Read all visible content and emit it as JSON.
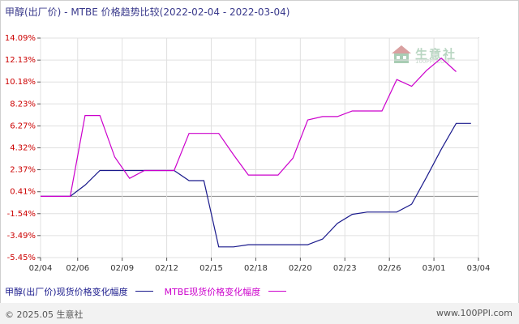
{
  "title": "甲醇(出厂价) - MTBE 价格趋势比较(2022-02-04 - 2022-03-04)",
  "footer": {
    "copyright": "© 2025.05 生意社",
    "site": "www.100PPI.com"
  },
  "watermark": {
    "name": "生意社",
    "url": "100PPI.COM"
  },
  "colors": {
    "series1": "#1a1a8c",
    "series2": "#cc00cc",
    "axis": "#555555",
    "grid": "#e0e0e0",
    "tick": "#cc0000"
  },
  "chart_data": {
    "type": "line",
    "title": "甲醇(出厂价) - MTBE 价格趋势比较(2022-02-04 - 2022-03-04)",
    "ylim": [
      -5.45,
      14.09
    ],
    "ytick_labels": [
      "14.09%",
      "12.13%",
      "10.18%",
      "8.23%",
      "6.27%",
      "4.32%",
      "2.37%",
      "0.41%",
      "-1.54%",
      "-3.49%",
      "-5.45%"
    ],
    "ytick_values": [
      14.09,
      12.13,
      10.18,
      8.23,
      6.27,
      4.32,
      2.37,
      0.41,
      -1.54,
      -3.49,
      -5.45
    ],
    "x_ticks": [
      "02/04",
      "02/06",
      "02/09",
      "02/12",
      "02/15",
      "02/18",
      "02/20",
      "02/23",
      "02/26",
      "03/01",
      "03/04"
    ],
    "x_tick_positions": [
      0,
      2.5,
      5.5,
      8.5,
      11.5,
      14.5,
      17.5,
      20.5,
      23.5,
      26.5,
      29.5
    ],
    "x_range": [
      0,
      29.5
    ],
    "grid": true,
    "legend_position": "bottom",
    "series": [
      {
        "name": "甲醇(出厂价)现货价格变化幅度",
        "points": [
          [
            0,
            0
          ],
          [
            2,
            0
          ],
          [
            3,
            1
          ],
          [
            4,
            2.3
          ],
          [
            5,
            2.3
          ],
          [
            6,
            2.3
          ],
          [
            7,
            2.3
          ],
          [
            8,
            2.3
          ],
          [
            9,
            2.3
          ],
          [
            10,
            1.4
          ],
          [
            11,
            1.4
          ],
          [
            12,
            -4.5
          ],
          [
            13,
            -4.5
          ],
          [
            14,
            -4.3
          ],
          [
            15,
            -4.3
          ],
          [
            16,
            -4.3
          ],
          [
            17,
            -4.3
          ],
          [
            18,
            -4.3
          ],
          [
            19,
            -3.8
          ],
          [
            20,
            -2.4
          ],
          [
            21,
            -1.6
          ],
          [
            22,
            -1.4
          ],
          [
            23,
            -1.4
          ],
          [
            24,
            -1.4
          ],
          [
            25,
            -0.7
          ],
          [
            26,
            1.7
          ],
          [
            27,
            4.2
          ],
          [
            28,
            6.5
          ],
          [
            29,
            6.5
          ]
        ]
      },
      {
        "name": "MTBE现货价格变化幅度",
        "points": [
          [
            0,
            0
          ],
          [
            2,
            0
          ],
          [
            3,
            7.2
          ],
          [
            4,
            7.2
          ],
          [
            5,
            3.5
          ],
          [
            6,
            1.6
          ],
          [
            7,
            2.3
          ],
          [
            8,
            2.3
          ],
          [
            9,
            2.3
          ],
          [
            10,
            5.6
          ],
          [
            11,
            5.6
          ],
          [
            12,
            5.6
          ],
          [
            13,
            3.7
          ],
          [
            14,
            1.9
          ],
          [
            15,
            1.9
          ],
          [
            16,
            1.9
          ],
          [
            17,
            3.4
          ],
          [
            18,
            6.8
          ],
          [
            19,
            7.1
          ],
          [
            20,
            7.1
          ],
          [
            21,
            7.6
          ],
          [
            22,
            7.6
          ],
          [
            23,
            7.6
          ],
          [
            24,
            10.4
          ],
          [
            25,
            9.8
          ],
          [
            26,
            11.2
          ],
          [
            27,
            12.3
          ],
          [
            28,
            11.1
          ]
        ]
      }
    ]
  }
}
